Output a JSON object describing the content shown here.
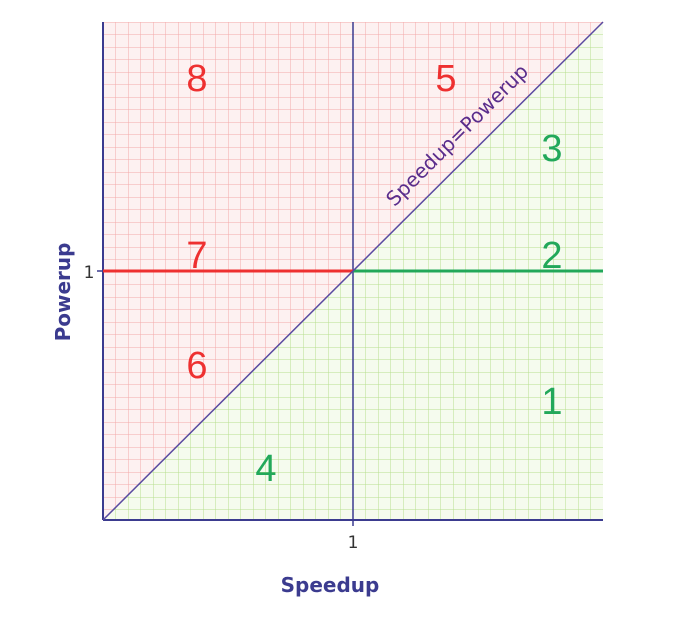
{
  "axes": {
    "x_title": "Speedup",
    "y_title": "Powerup",
    "x_tick": "1",
    "y_tick": "1"
  },
  "diagonal_label": "Speedup=Powerup",
  "regions": {
    "r1": "1",
    "r2": "2",
    "r3": "3",
    "r4": "4",
    "r5": "5",
    "r6": "6",
    "r7": "7",
    "r8": "8"
  },
  "colors": {
    "red": "#ee3030",
    "green": "#22a85a",
    "axis": "#3b3b8f",
    "diagonal": "#5a4aa0",
    "grid_red": "#f4a9a9",
    "grid_green": "#b6df8e"
  }
}
